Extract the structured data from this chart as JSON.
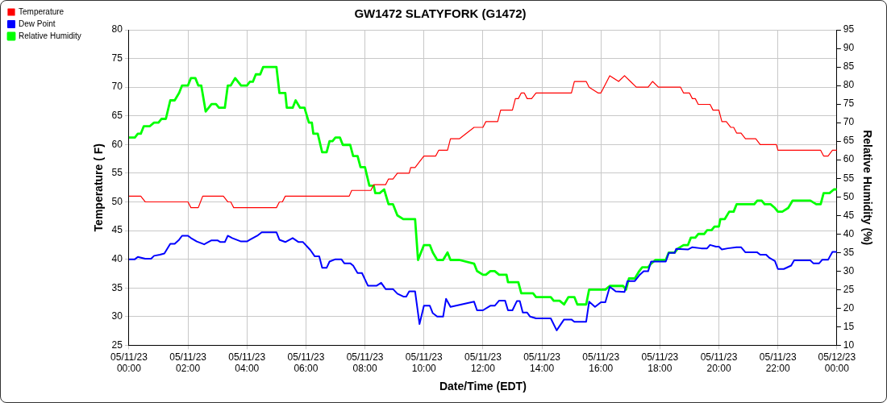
{
  "chart_data": {
    "type": "line",
    "title": "GW1472 SLATYFORK (G1472)",
    "xlabel": "Date/Time (EDT)",
    "ylabel": "Temperature ( F)",
    "y2label": "Relative Humidity (%)",
    "xlim": [
      "--05-11T00:00",
      "--05-12T00:00"
    ],
    "xticks": [
      {
        "value": "--05-11T00:00",
        "label": "05/11/23\n00:00"
      },
      {
        "value": "--05-11T02:00",
        "label": "05/11/23\n02:00"
      },
      {
        "value": "--05-11T04:00",
        "label": "05/11/23\n04:00"
      },
      {
        "value": "--05-11T06:00",
        "label": "05/11/23\n06:00"
      },
      {
        "value": "--05-11T08:00",
        "label": "05/11/23\n08:00"
      },
      {
        "value": "--05-11T10:00",
        "label": "05/11/23\n10:00"
      },
      {
        "value": "--05-11T12:00",
        "label": "05/11/23\n12:00"
      },
      {
        "value": "--05-11T14:00",
        "label": "05/11/23\n14:00"
      },
      {
        "value": "--05-11T16:00",
        "label": "05/11/23\n16:00"
      },
      {
        "value": "--05-11T18:00",
        "label": "05/11/23\n18:00"
      },
      {
        "value": "--05-11T20:00",
        "label": "05/11/23\n20:00"
      },
      {
        "value": "--05-11T22:00",
        "label": "05/11/23\n22:00"
      },
      {
        "value": "--05-12T00:00",
        "label": "05/12/23\n00:00"
      }
    ],
    "ylim": [
      25,
      80
    ],
    "yticks": [
      25,
      30,
      35,
      40,
      45,
      50,
      55,
      60,
      65,
      70,
      75,
      80
    ],
    "y2lim": [
      10,
      95
    ],
    "y2ticks": [
      10,
      15,
      20,
      25,
      30,
      35,
      40,
      45,
      50,
      55,
      60,
      65,
      70,
      75,
      80,
      85,
      90,
      95
    ],
    "grid": true,
    "legend": "top left",
    "marker": "none",
    "line_style": "solid",
    "series": [
      {
        "name": "Temperature",
        "color": "#ff0000",
        "x": [
          "--05-11T00:00",
          "--05-11T00:24",
          "--05-11T00:33",
          "--05-11T02:00",
          "--05-11T02:06",
          "--05-11T02:21",
          "--05-11T02:30",
          "--05-11T03:12",
          "--05-11T03:21",
          "--05-11T03:27",
          "--05-11T03:33",
          "--05-11T05:00",
          "--05-11T05:06",
          "--05-11T05:12",
          "--05-11T05:18",
          "--05-11T07:28",
          "--05-11T07:33",
          "--05-11T08:12",
          "--05-11T08:18",
          "--05-11T08:42",
          "--05-11T08:48",
          "--05-11T08:57",
          "--05-11T09:06",
          "--05-11T09:30",
          "--05-11T09:33",
          "--05-11T09:42",
          "--05-11T09:51",
          "--05-11T10:00",
          "--05-11T10:24",
          "--05-11T10:30",
          "--05-11T10:48",
          "--05-11T10:54",
          "--05-11T11:12",
          "--05-11T11:42",
          "--05-11T12:00",
          "--05-11T12:06",
          "--05-11T12:30",
          "--05-11T12:36",
          "--05-11T13:00",
          "--05-11T13:06",
          "--05-11T13:12",
          "--05-11T13:18",
          "--05-11T13:24",
          "--05-11T13:30",
          "--05-11T13:39",
          "--05-11T13:48",
          "--05-11T15:00",
          "--05-11T15:06",
          "--05-11T15:30",
          "--05-11T15:36",
          "--05-11T15:54",
          "--05-11T16:00",
          "--05-11T16:06",
          "--05-11T16:18",
          "--05-11T16:36",
          "--05-11T16:48",
          "--05-11T17:00",
          "--05-11T17:12",
          "--05-11T17:36",
          "--05-11T17:45",
          "--05-11T17:57",
          "--05-11T18:02",
          "--05-11T18:42",
          "--05-11T18:48",
          "--05-11T19:00",
          "--05-11T19:06",
          "--05-11T19:12",
          "--05-11T19:18",
          "--05-11T19:42",
          "--05-11T19:48",
          "--05-11T20:00",
          "--05-11T20:06",
          "--05-11T20:15",
          "--05-11T20:24",
          "--05-11T20:30",
          "--05-11T20:36",
          "--05-11T20:45",
          "--05-11T20:54",
          "--05-11T21:15",
          "--05-11T21:24",
          "--05-11T21:57",
          "--05-11T22:00",
          "--05-11T23:27",
          "--05-11T23:33",
          "--05-11T23:42",
          "--05-11T23:51",
          "--05-12T00:00"
        ],
        "values": [
          51,
          51,
          50,
          50,
          49,
          49,
          51,
          51,
          50,
          50,
          49,
          49,
          50,
          50,
          51,
          51,
          52,
          52,
          53,
          53,
          54,
          54,
          55,
          55,
          56,
          56,
          57,
          58,
          58,
          59,
          59,
          61,
          61,
          63,
          63,
          64,
          64,
          66,
          66,
          68,
          68,
          69,
          69,
          68,
          68,
          69,
          69,
          71,
          71,
          70,
          69,
          69,
          70,
          72,
          71,
          72,
          71,
          70,
          70,
          71,
          70,
          70,
          70,
          69,
          69,
          68,
          68,
          67,
          67,
          66,
          66,
          64,
          64,
          63,
          63,
          62,
          62,
          61,
          61,
          60,
          60,
          59,
          59,
          58,
          58,
          59,
          59
        ]
      },
      {
        "name": "Dew Point",
        "color": "#0000ff",
        "x": [
          "--05-11T00:00",
          "--05-11T00:12",
          "--05-11T00:18",
          "--05-11T00:33",
          "--05-11T00:45",
          "--05-11T00:51",
          "--05-11T01:03",
          "--05-11T01:12",
          "--05-11T01:24",
          "--05-11T01:33",
          "--05-11T01:42",
          "--05-11T01:48",
          "--05-11T02:00",
          "--05-11T02:06",
          "--05-11T02:18",
          "--05-11T02:33",
          "--05-11T02:48",
          "--05-11T03:00",
          "--05-11T03:06",
          "--05-11T03:15",
          "--05-11T03:21",
          "--05-11T03:30",
          "--05-11T03:48",
          "--05-11T04:00",
          "--05-11T04:06",
          "--05-11T04:21",
          "--05-11T04:30",
          "--05-11T05:00",
          "--05-11T05:06",
          "--05-11T05:18",
          "--05-11T05:33",
          "--05-11T05:45",
          "--05-11T05:54",
          "--05-11T06:09",
          "--05-11T06:18",
          "--05-11T06:27",
          "--05-11T06:33",
          "--05-11T06:42",
          "--05-11T06:48",
          "--05-11T07:00",
          "--05-11T07:12",
          "--05-11T07:18",
          "--05-11T07:30",
          "--05-11T07:36",
          "--05-11T07:45",
          "--05-11T07:54",
          "--05-11T08:06",
          "--05-11T08:24",
          "--05-11T08:33",
          "--05-11T08:42",
          "--05-11T08:57",
          "--05-11T09:06",
          "--05-11T09:18",
          "--05-11T09:24",
          "--05-11T09:30",
          "--05-11T09:42",
          "--05-11T09:51",
          "--05-11T10:00",
          "--05-11T10:12",
          "--05-11T10:18",
          "--05-11T10:27",
          "--05-11T10:39",
          "--05-11T10:45",
          "--05-11T10:54",
          "--05-11T11:42",
          "--05-11T11:48",
          "--05-11T12:00",
          "--05-11T12:15",
          "--05-11T12:24",
          "--05-11T12:33",
          "--05-11T12:45",
          "--05-11T12:51",
          "--05-11T13:00",
          "--05-11T13:09",
          "--05-11T13:15",
          "--05-11T13:21",
          "--05-11T13:30",
          "--05-11T13:36",
          "--05-11T13:48",
          "--05-11T14:18",
          "--05-11T14:30",
          "--05-11T14:45",
          "--05-11T15:00",
          "--05-11T15:06",
          "--05-11T15:30",
          "--05-11T15:36",
          "--05-11T15:48",
          "--05-11T16:00",
          "--05-11T16:09",
          "--05-11T16:18",
          "--05-11T16:30",
          "--05-11T16:48",
          "--05-11T16:54",
          "--05-11T17:09",
          "--05-11T17:18",
          "--05-11T17:27",
          "--05-11T17:36",
          "--05-11T17:42",
          "--05-11T18:00",
          "--05-11T18:12",
          "--05-11T18:18",
          "--05-11T18:30",
          "--05-11T18:33",
          "--05-11T18:57",
          "--05-11T19:06",
          "--05-11T19:24",
          "--05-11T19:36",
          "--05-11T19:42",
          "--05-11T19:54",
          "--05-11T20:00",
          "--05-11T20:06",
          "--05-11T20:18",
          "--05-11T20:36",
          "--05-11T20:45",
          "--05-11T20:54",
          "--05-11T21:18",
          "--05-11T21:24",
          "--05-11T21:36",
          "--05-11T21:42",
          "--05-11T21:54",
          "--05-11T22:00",
          "--05-11T22:12",
          "--05-11T22:27",
          "--05-11T22:33",
          "--05-11T23:06",
          "--05-11T23:12",
          "--05-11T23:24",
          "--05-11T23:30",
          "--05-11T23:42",
          "--05-11T23:51",
          "--05-12T00:00"
        ],
        "values": [
          40,
          40,
          40.4,
          40.1,
          40.1,
          40.6,
          40.8,
          41,
          42.7,
          42.7,
          43.4,
          44.1,
          44.1,
          43.7,
          43.1,
          42.6,
          43.3,
          43.3,
          43,
          43,
          44.1,
          43.7,
          43.1,
          43.1,
          43.4,
          44.1,
          44.7,
          44.7,
          43.4,
          43,
          43.7,
          43,
          43,
          41.6,
          40.5,
          40.5,
          38.5,
          38.5,
          39.6,
          40,
          40,
          39.3,
          39.3,
          38.9,
          37.6,
          37.6,
          35.4,
          35.4,
          35.9,
          34.8,
          34.8,
          34,
          33.5,
          33.5,
          34.4,
          34.4,
          28.7,
          31.9,
          31.9,
          30.6,
          30,
          30,
          33.1,
          31.7,
          32.6,
          31.1,
          31.1,
          31.9,
          31.9,
          32.8,
          32.8,
          31.1,
          31.1,
          32.7,
          32.7,
          30.7,
          30.7,
          30,
          29.7,
          29.7,
          27.6,
          29.5,
          29.5,
          29.1,
          29.1,
          32.6,
          31.7,
          32.5,
          32.5,
          35.2,
          34.4,
          34.3,
          36.2,
          36.2,
          37.2,
          37.9,
          37.9,
          39.6,
          39.6,
          39.6,
          41.1,
          41.1,
          41.8,
          41.7,
          42.1,
          41.9,
          41.9,
          42.5,
          42.2,
          42.2,
          41.7,
          41.9,
          42.1,
          42.1,
          41.2,
          41.2,
          40.8,
          40.8,
          40.3,
          39.7,
          38.3,
          38.3,
          38.9,
          39.8,
          39.8,
          39.3,
          39.3,
          39.9,
          39.9,
          41.3,
          41.3
        ]
      },
      {
        "name": "Relative Humidity",
        "color": "#00ff00",
        "axis": "y2",
        "x": [
          "--05-11T00:00",
          "--05-11T00:12",
          "--05-11T00:18",
          "--05-11T00:24",
          "--05-11T00:30",
          "--05-11T00:42",
          "--05-11T00:51",
          "--05-11T01:00",
          "--05-11T01:06",
          "--05-11T01:15",
          "--05-11T01:24",
          "--05-11T01:33",
          "--05-11T01:42",
          "--05-11T01:48",
          "--05-11T02:00",
          "--05-11T02:06",
          "--05-11T02:15",
          "--05-11T02:21",
          "--05-11T02:27",
          "--05-11T02:36",
          "--05-11T02:48",
          "--05-11T02:57",
          "--05-11T03:03",
          "--05-11T03:15",
          "--05-11T03:21",
          "--05-11T03:27",
          "--05-11T03:36",
          "--05-11T03:48",
          "--05-11T04:00",
          "--05-11T04:06",
          "--05-11T04:12",
          "--05-11T04:18",
          "--05-11T04:27",
          "--05-11T04:33",
          "--05-11T05:00",
          "--05-11T05:06",
          "--05-11T05:18",
          "--05-11T05:21",
          "--05-11T05:33",
          "--05-11T05:39",
          "--05-11T05:48",
          "--05-11T05:57",
          "--05-11T06:06",
          "--05-11T06:12",
          "--05-11T06:15",
          "--05-11T06:24",
          "--05-11T06:33",
          "--05-11T06:42",
          "--05-11T06:48",
          "--05-11T06:54",
          "--05-11T07:00",
          "--05-11T07:09",
          "--05-11T07:15",
          "--05-11T07:30",
          "--05-11T07:36",
          "--05-11T07:45",
          "--05-11T07:51",
          "--05-11T08:00",
          "--05-11T08:09",
          "--05-11T08:18",
          "--05-11T08:21",
          "--05-11T08:30",
          "--05-11T08:39",
          "--05-11T08:48",
          "--05-11T08:57",
          "--05-11T09:06",
          "--05-11T09:18",
          "--05-11T09:42",
          "--05-11T09:48",
          "--05-11T10:00",
          "--05-11T10:12",
          "--05-11T10:18",
          "--05-11T10:27",
          "--05-11T10:39",
          "--05-11T10:48",
          "--05-11T10:54",
          "--05-11T11:12",
          "--05-11T11:42",
          "--05-11T11:48",
          "--05-11T12:00",
          "--05-11T12:06",
          "--05-11T12:15",
          "--05-11T12:24",
          "--05-11T12:33",
          "--05-11T12:48",
          "--05-11T12:51",
          "--05-11T13:12",
          "--05-11T13:18",
          "--05-11T13:42",
          "--05-11T13:48",
          "--05-11T14:18",
          "--05-11T14:24",
          "--05-11T14:36",
          "--05-11T14:45",
          "--05-11T14:54",
          "--05-11T15:06",
          "--05-11T15:12",
          "--05-11T15:30",
          "--05-11T15:36",
          "--05-11T16:09",
          "--05-11T16:18",
          "--05-11T16:45",
          "--05-11T16:51",
          "--05-11T16:57",
          "--05-11T17:09",
          "--05-11T17:18",
          "--05-11T17:24",
          "--05-11T17:36",
          "--05-11T17:42",
          "--05-11T17:51",
          "--05-11T18:03",
          "--05-11T18:12",
          "--05-11T18:18",
          "--05-11T18:30",
          "--05-11T18:36",
          "--05-11T18:48",
          "--05-11T18:57",
          "--05-11T19:03",
          "--05-11T19:12",
          "--05-11T19:18",
          "--05-11T19:30",
          "--05-11T19:36",
          "--05-11T19:45",
          "--05-11T19:51",
          "--05-11T20:00",
          "--05-11T20:03",
          "--05-11T20:12",
          "--05-11T20:21",
          "--05-11T20:30",
          "--05-11T20:36",
          "--05-11T21:12",
          "--05-11T21:18",
          "--05-11T21:27",
          "--05-11T21:33",
          "--05-11T21:45",
          "--05-11T21:54",
          "--05-11T22:00",
          "--05-11T22:09",
          "--05-11T22:21",
          "--05-11T22:30",
          "--05-11T23:06",
          "--05-11T23:18",
          "--05-11T23:27",
          "--05-11T23:33",
          "--05-11T23:45",
          "--05-11T23:54",
          "--05-12T00:00"
        ],
        "values": [
          66,
          66,
          67,
          67,
          69,
          69,
          70,
          70,
          71,
          71,
          76,
          76,
          78,
          80,
          80,
          82,
          82,
          80,
          80,
          73,
          75,
          75,
          74,
          74,
          80,
          80,
          82,
          80,
          80,
          81,
          81,
          83,
          83,
          85,
          85,
          78,
          78,
          74,
          74,
          76,
          74,
          74,
          70,
          70,
          67,
          67,
          62,
          62,
          65,
          65,
          66,
          66,
          64,
          64,
          61,
          61,
          58,
          58,
          53,
          53,
          51,
          51,
          52,
          48,
          48,
          45,
          44,
          44,
          33,
          37,
          37,
          35,
          33,
          33,
          35,
          33,
          33,
          32,
          30,
          29,
          29,
          30,
          30,
          29,
          29,
          27,
          27,
          24,
          24,
          23,
          23,
          22,
          22,
          21,
          23,
          23,
          21,
          21,
          25,
          25,
          26,
          26,
          25,
          28,
          28,
          30,
          31,
          31,
          32,
          33,
          33,
          33,
          35,
          35,
          36,
          37,
          37,
          39,
          39,
          40,
          40,
          41,
          41,
          42,
          42,
          44,
          44,
          46,
          46,
          48,
          48,
          49,
          49,
          48,
          48,
          47,
          46,
          46,
          47,
          49,
          49,
          48,
          48,
          51,
          51,
          52,
          52
        ]
      }
    ]
  }
}
